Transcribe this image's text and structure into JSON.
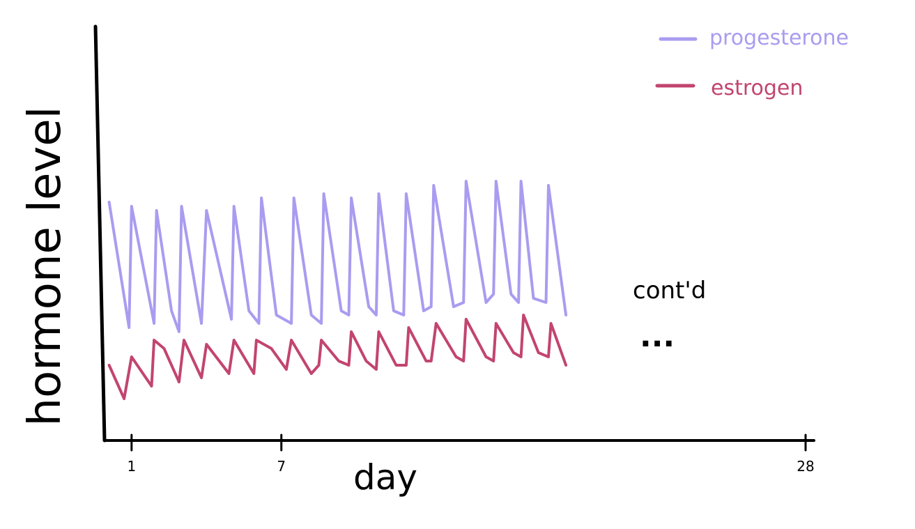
{
  "chart_data": {
    "type": "line",
    "xlabel": "day",
    "ylabel": "hormone level",
    "x_ticks": [
      "1",
      "7",
      "28"
    ],
    "xlim": [
      0,
      28
    ],
    "ylim": [
      0,
      10
    ],
    "legend": {
      "placement": "top-right",
      "entries": [
        {
          "name": "progesterone",
          "color": "#a99cf0"
        },
        {
          "name": "estrogen",
          "color": "#c2456f"
        }
      ]
    },
    "annotations": [
      "cont'd",
      "..."
    ],
    "series": [
      {
        "name": "progesterone",
        "color": "#a99cf0",
        "x": [
          0.1,
          0.9,
          1.0,
          1.9,
          2.0,
          2.6,
          2.9,
          3.0,
          3.8,
          4.0,
          5.0,
          5.1,
          5.7,
          6.1,
          6.2,
          6.8,
          7.4,
          7.5,
          8.2,
          8.6,
          8.7,
          9.4,
          9.7,
          9.8,
          10.5,
          10.8,
          10.9,
          11.5,
          11.9,
          12.0,
          12.7,
          13.0,
          13.1,
          13.9,
          14.3,
          14.4,
          15.2,
          15.5,
          15.6,
          16.2,
          16.5,
          16.6,
          17.1,
          17.6,
          17.7,
          18.4
        ],
        "y": [
          5.7,
          2.7,
          5.6,
          2.8,
          5.5,
          3.1,
          2.6,
          5.6,
          2.8,
          5.5,
          2.9,
          5.6,
          3.1,
          2.8,
          5.8,
          3.0,
          2.8,
          5.8,
          3.0,
          2.8,
          5.9,
          3.1,
          3.0,
          5.8,
          3.2,
          3.0,
          5.9,
          3.1,
          3.0,
          5.9,
          3.1,
          3.2,
          6.1,
          3.2,
          3.3,
          6.2,
          3.3,
          3.5,
          6.2,
          3.5,
          3.3,
          6.2,
          3.4,
          3.3,
          6.1,
          3.0
        ]
      },
      {
        "name": "estrogen",
        "color": "#c2456f",
        "x": [
          0.1,
          0.7,
          1.0,
          1.8,
          1.9,
          2.3,
          2.9,
          3.1,
          3.8,
          4.0,
          4.9,
          5.1,
          5.9,
          6.0,
          6.6,
          7.2,
          7.4,
          8.2,
          8.5,
          8.6,
          9.3,
          9.7,
          9.8,
          10.4,
          10.8,
          10.9,
          11.6,
          12.0,
          12.1,
          12.8,
          13.0,
          13.2,
          14.0,
          14.3,
          14.4,
          15.2,
          15.5,
          15.6,
          16.3,
          16.6,
          16.7,
          17.3,
          17.7,
          17.8,
          18.4
        ],
        "y": [
          1.8,
          1.0,
          2.0,
          1.3,
          2.4,
          2.2,
          1.4,
          2.4,
          1.5,
          2.3,
          1.6,
          2.4,
          1.6,
          2.4,
          2.2,
          1.7,
          2.4,
          1.6,
          1.8,
          2.4,
          1.9,
          1.8,
          2.6,
          1.9,
          1.7,
          2.6,
          1.8,
          1.8,
          2.7,
          1.9,
          1.9,
          2.8,
          2.0,
          1.9,
          2.9,
          2.0,
          1.9,
          2.8,
          2.1,
          2.0,
          3.0,
          2.1,
          2.0,
          2.8,
          1.8
        ]
      }
    ]
  }
}
